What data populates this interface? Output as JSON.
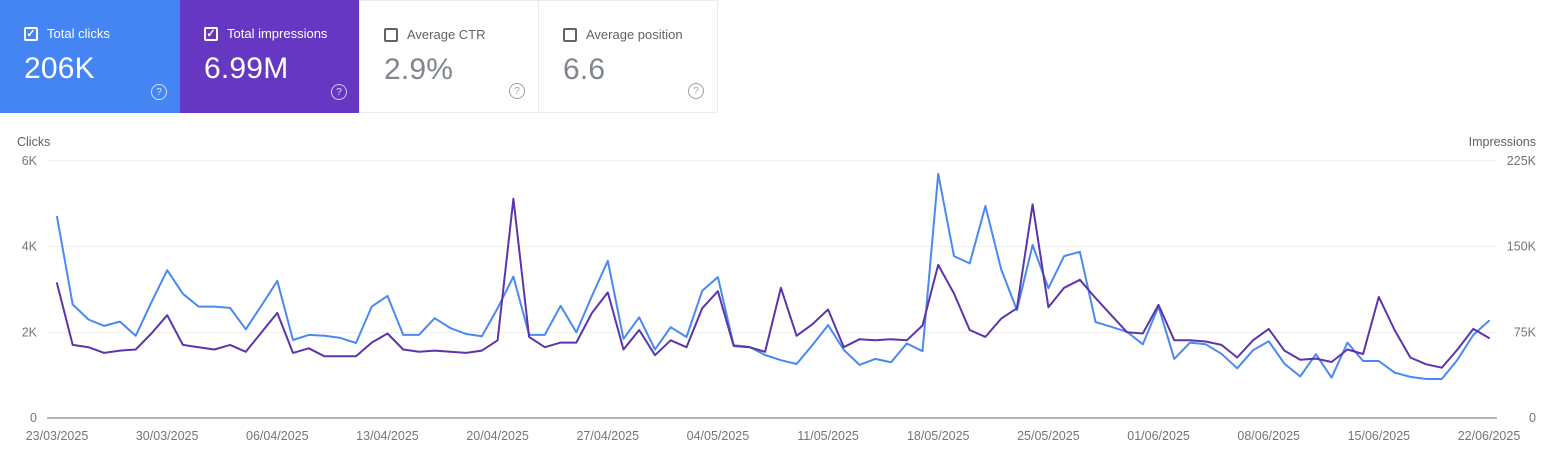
{
  "icons": {
    "help": "?",
    "check": "✓"
  },
  "colors": {
    "clicks_card_bg": "#4484f3",
    "impressions_card_bg": "#6637c2",
    "clicks_line": "#4a89f2",
    "impressions_line": "#5c34ac",
    "grid": "#eeeeee",
    "axis": "#b3b3b3",
    "tick_text": "#757575"
  },
  "cards": [
    {
      "label": "Total clicks",
      "value": "206K",
      "checked": true
    },
    {
      "label": "Total impressions",
      "value": "6.99M",
      "checked": true
    },
    {
      "label": "Average CTR",
      "value": "2.9%",
      "checked": false
    },
    {
      "label": "Average position",
      "value": "6.6",
      "checked": false
    }
  ],
  "chart_data": {
    "type": "line",
    "start_date": "23/03/2025",
    "end_date": "22/06/2025",
    "frequency": "daily",
    "grid": true,
    "left_axis": {
      "title": "Clicks",
      "ticks": [
        "0",
        "2K",
        "4K",
        "6K"
      ],
      "max": 6000
    },
    "right_axis": {
      "title": "Impressions",
      "ticks": [
        "0",
        "75K",
        "150K",
        "225K"
      ],
      "max": 225000
    },
    "x_tick_interval_days": 7,
    "x_tick_labels": [
      "23/03/2025",
      "30/03/2025",
      "06/04/2025",
      "13/04/2025",
      "20/04/2025",
      "27/04/2025",
      "04/05/2025",
      "11/05/2025",
      "18/05/2025",
      "25/05/2025",
      "01/06/2025",
      "08/06/2025",
      "15/06/2025",
      "22/06/2025"
    ],
    "series": [
      {
        "name": "Total clicks",
        "axis": "left",
        "values": [
          4700,
          2650,
          2300,
          2150,
          2250,
          1920,
          2700,
          3450,
          2900,
          2600,
          2600,
          2570,
          2070,
          2630,
          3200,
          1820,
          1940,
          1920,
          1870,
          1750,
          2600,
          2850,
          1940,
          1940,
          2330,
          2100,
          1960,
          1910,
          2560,
          3300,
          1940,
          1940,
          2620,
          2000,
          2850,
          3670,
          1850,
          2350,
          1600,
          2120,
          1890,
          2970,
          3290,
          1700,
          1660,
          1470,
          1350,
          1260,
          1700,
          2170,
          1590,
          1240,
          1380,
          1300,
          1740,
          1560,
          5700,
          3780,
          3610,
          4950,
          3470,
          2520,
          4040,
          3030,
          3780,
          3880,
          2240,
          2130,
          2010,
          1720,
          2600,
          1380,
          1760,
          1720,
          1500,
          1160,
          1580,
          1790,
          1270,
          970,
          1490,
          940,
          1760,
          1330,
          1330,
          1060,
          960,
          910,
          910,
          1360,
          1940,
          2270
        ]
      },
      {
        "name": "Total impressions",
        "axis": "right",
        "values": [
          118000,
          64000,
          62000,
          57000,
          59000,
          60000,
          74000,
          90000,
          64000,
          62000,
          60000,
          64000,
          58000,
          75000,
          92000,
          57000,
          61000,
          54000,
          54000,
          54000,
          66000,
          74000,
          60000,
          58000,
          59000,
          58000,
          57000,
          59000,
          68000,
          192000,
          71000,
          62000,
          66000,
          66000,
          92000,
          110000,
          60000,
          77000,
          55000,
          68000,
          62000,
          96000,
          111000,
          63000,
          62000,
          58000,
          114000,
          72000,
          82000,
          95000,
          62000,
          69000,
          68000,
          69000,
          68000,
          81000,
          134000,
          109000,
          77000,
          71000,
          87000,
          96000,
          187000,
          97000,
          114000,
          121000,
          105000,
          90000,
          75000,
          74000,
          99000,
          68000,
          68000,
          67000,
          64000,
          53000,
          68000,
          78000,
          59000,
          51000,
          52000,
          49000,
          60000,
          56000,
          106000,
          77000,
          53000,
          47000,
          44000,
          60000,
          78000,
          70000
        ]
      }
    ]
  }
}
